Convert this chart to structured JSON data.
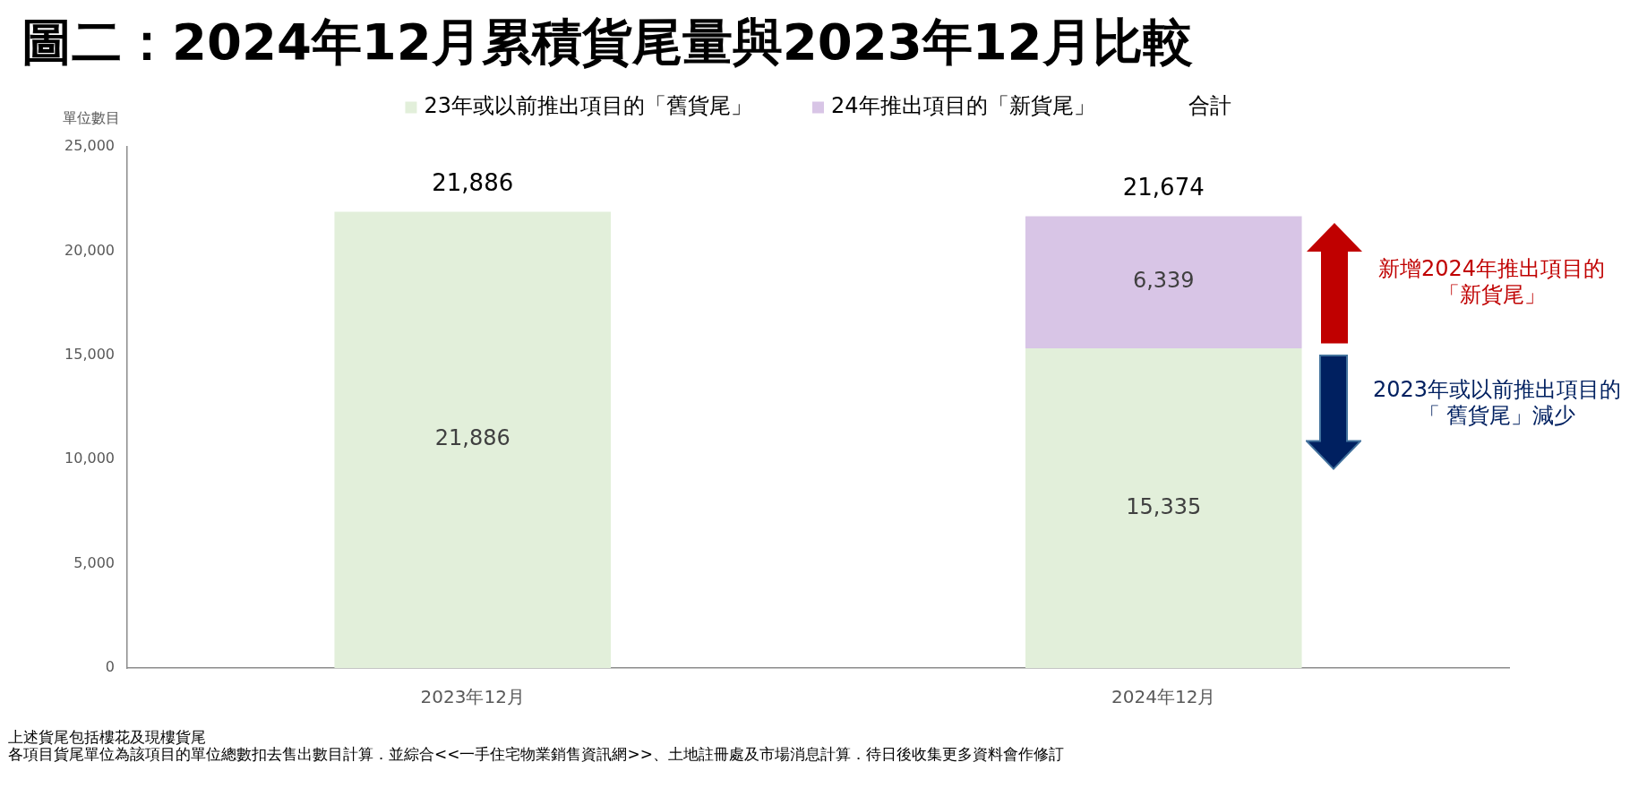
{
  "chart_data": {
    "type": "bar",
    "title": "圖二：2024年12月累積貨尾量與2023年12月比較",
    "ylabel": "單位數目",
    "categories": [
      "2023年12月",
      "2024年12月"
    ],
    "series": [
      {
        "name": "23年或以前推出項目的「舊貨尾」",
        "color": "#e2efda",
        "values": [
          21886,
          15335
        ],
        "value_labels": [
          "21,886",
          "15,335"
        ]
      },
      {
        "name": "24年推出項目的「新貨尾」",
        "color": "#d8c5e6",
        "values": [
          null,
          6339
        ],
        "value_labels": [
          null,
          "6,339"
        ]
      }
    ],
    "stacked": true,
    "totals": [
      "21,886",
      "21,674"
    ],
    "ylim": [
      0,
      25000
    ],
    "yticks": [
      0,
      {
        "value": 5000,
        "label": "5,000"
      },
      {
        "value": 10000,
        "label": "10,000"
      },
      {
        "value": 15000,
        "label": "15,000"
      },
      {
        "value": 20000,
        "label": "20,000"
      },
      {
        "value": 25000,
        "label": "25,000"
      }
    ],
    "legend": "top",
    "annotations": [
      "合計",
      "新增2024年推出項目的「新貨尾」",
      "2023年或以前推出項目的「 舊貨尾」減少",
      "上述貨尾包括樓花及現樓貨尾",
      "各項目貨尾單位為該項目的單位總數扣去售出數目計算．並綜合<<一手住宅物業銷售資訊網>>、土地註冊處及市場消息計算．待日後收集更多資料會作修訂"
    ]
  }
}
